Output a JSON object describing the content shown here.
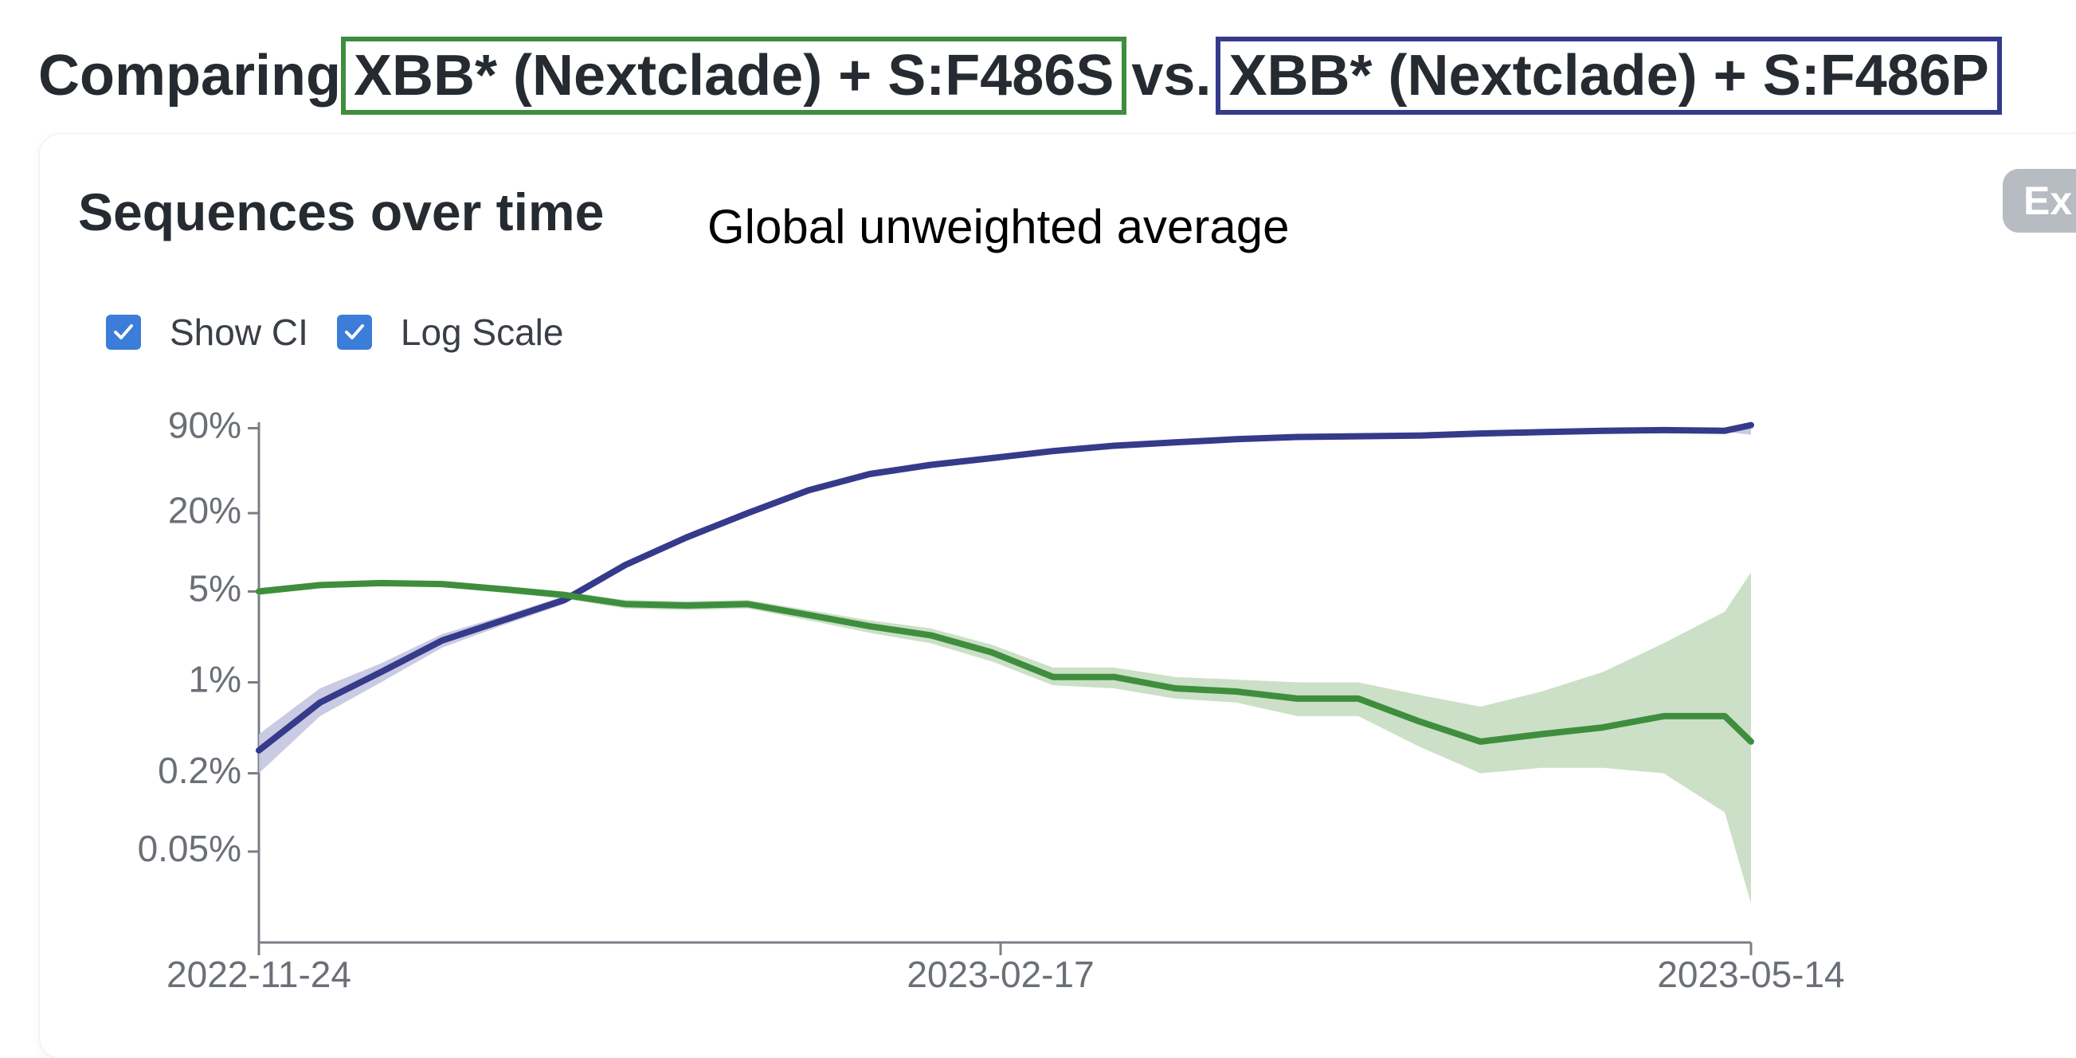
{
  "heading": {
    "prefix": "Comparing",
    "variant_a": "XBB* (Nextclade) + S:F486S",
    "separator": "vs.",
    "variant_b": "XBB* (Nextclade) + S:F486P"
  },
  "card": {
    "title": "Sequences over time",
    "subtitle": "Global unweighted average",
    "export_label": "Ex"
  },
  "controls": {
    "show_ci": {
      "label": "Show CI",
      "checked": true
    },
    "log_scale": {
      "label": "Log Scale",
      "checked": true
    }
  },
  "colors": {
    "variant_a": "#3e8e3e",
    "variant_b": "#353b8a",
    "ci_a": "#c5ddc0",
    "ci_b": "#c3c4e0",
    "checkbox": "#3b7dd8"
  },
  "chart_data": {
    "type": "line",
    "title": "Sequences over time",
    "subtitle": "Global unweighted average",
    "y_scale": "log",
    "ylim": [
      0.01,
      100
    ],
    "y_ticks": [
      90,
      20,
      5,
      1,
      0.2,
      0.05
    ],
    "y_tick_labels": [
      "90%",
      "20%",
      "5%",
      "1%",
      "0.2%",
      "0.05%"
    ],
    "x_ticks": [
      "2022-11-24",
      "2023-02-17",
      "2023-05-14"
    ],
    "x_range": [
      "2022-11-24",
      "2023-05-14"
    ],
    "x": [
      "2022-11-24",
      "2022-12-01",
      "2022-12-08",
      "2022-12-15",
      "2022-12-22",
      "2022-12-29",
      "2023-01-05",
      "2023-01-12",
      "2023-01-19",
      "2023-01-26",
      "2023-02-02",
      "2023-02-09",
      "2023-02-16",
      "2023-02-23",
      "2023-03-02",
      "2023-03-09",
      "2023-03-16",
      "2023-03-23",
      "2023-03-30",
      "2023-04-06",
      "2023-04-13",
      "2023-04-20",
      "2023-04-27",
      "2023-05-04",
      "2023-05-11",
      "2023-05-14"
    ],
    "series": [
      {
        "name": "XBB* (Nextclade) + S:F486P",
        "values": [
          0.3,
          0.7,
          1.2,
          2.1,
          3.0,
          4.3,
          8.0,
          13.0,
          20.0,
          30.0,
          40.0,
          47.0,
          53.0,
          60.0,
          66.0,
          70.0,
          74.0,
          77.0,
          78.0,
          79.0,
          82.0,
          84.0,
          86.0,
          87.0,
          86.0,
          95.0
        ],
        "ci_low": [
          0.2,
          0.55,
          1.0,
          1.85,
          2.75,
          4.0,
          7.6,
          12.6,
          19.5,
          29.5,
          39.5,
          46.5,
          52.5,
          59.5,
          65.5,
          69.5,
          73.5,
          76.5,
          77.5,
          78.5,
          81.5,
          83.5,
          85.5,
          86.0,
          84.5,
          80.0
        ],
        "ci_high": [
          0.4,
          0.9,
          1.4,
          2.35,
          3.25,
          4.6,
          8.4,
          13.4,
          20.5,
          30.5,
          40.5,
          47.5,
          53.5,
          60.5,
          66.5,
          70.5,
          74.5,
          77.5,
          78.5,
          79.5,
          82.5,
          84.5,
          86.5,
          88.0,
          87.5,
          99.0
        ]
      },
      {
        "name": "XBB* (Nextclade) + S:F486S",
        "values": [
          5.0,
          5.6,
          5.8,
          5.7,
          5.2,
          4.7,
          4.0,
          3.9,
          4.0,
          3.3,
          2.7,
          2.3,
          1.7,
          1.1,
          1.1,
          0.9,
          0.85,
          0.75,
          0.75,
          0.5,
          0.35,
          0.4,
          0.45,
          0.55,
          0.55,
          0.35
        ],
        "ci_low": [
          4.7,
          5.3,
          5.5,
          5.4,
          4.9,
          4.4,
          3.7,
          3.6,
          3.7,
          3.0,
          2.4,
          2.0,
          1.45,
          0.95,
          0.9,
          0.75,
          0.7,
          0.55,
          0.55,
          0.32,
          0.2,
          0.22,
          0.22,
          0.2,
          0.1,
          0.02
        ],
        "ci_high": [
          5.3,
          5.9,
          6.1,
          6.0,
          5.5,
          5.0,
          4.3,
          4.2,
          4.3,
          3.6,
          3.0,
          2.6,
          1.95,
          1.3,
          1.3,
          1.1,
          1.05,
          1.0,
          1.0,
          0.8,
          0.65,
          0.85,
          1.2,
          2.0,
          3.5,
          7.0
        ]
      }
    ]
  }
}
